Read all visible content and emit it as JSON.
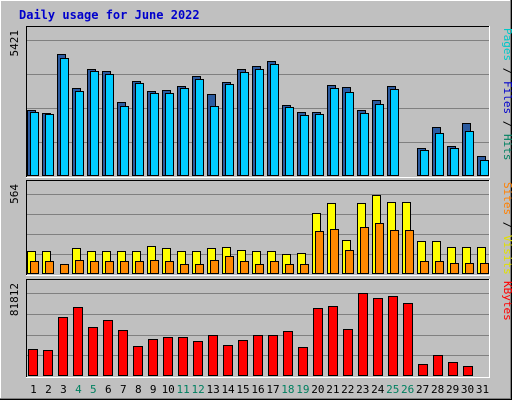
{
  "chart_data": {
    "type": "bar",
    "title": "Daily usage for June 2022",
    "x": [
      "1",
      "2",
      "3",
      "4",
      "5",
      "6",
      "7",
      "8",
      "9",
      "10",
      "11",
      "12",
      "13",
      "14",
      "15",
      "16",
      "17",
      "18",
      "19",
      "20",
      "21",
      "22",
      "23",
      "24",
      "25",
      "26",
      "27",
      "28",
      "29",
      "30",
      "31"
    ],
    "weekend_days": [
      "4",
      "5",
      "11",
      "12",
      "18",
      "19",
      "25",
      "26"
    ],
    "panels": [
      {
        "ymax_label": "5421",
        "ymax": 5421,
        "legend": [
          {
            "text": "Pages",
            "color": "#00c8c8"
          },
          {
            "text": " / ",
            "color": "#000000"
          },
          {
            "text": "Files",
            "color": "#0000cc"
          },
          {
            "text": " / ",
            "color": "#000000"
          },
          {
            "text": "Hits",
            "color": "#008060"
          }
        ],
        "series": [
          {
            "name": "Hits",
            "color": "#2b5ba0",
            "values": [
              2620,
              2510,
              4860,
              3500,
              4250,
              4180,
              2950,
              3800,
              3400,
              3420,
              3600,
              4000,
              3250,
              3760,
              4250,
              4400,
              4590,
              2850,
              2550,
              2560,
              3620,
              3560,
              2650,
              3040,
              3570,
              0,
              1110,
              1940,
              1210,
              2110,
              800
            ]
          },
          {
            "name": "Files",
            "color": "#00ccff",
            "values": [
              2540,
              2460,
              4720,
              3400,
              4180,
              4050,
              2810,
              3720,
              3320,
              3310,
              3520,
              3880,
              2800,
              3670,
              4140,
              4260,
              4450,
              2750,
              2420,
              2480,
              3500,
              3360,
              2510,
              2860,
              3460,
              0,
              1020,
              1700,
              1110,
              1810,
              620
            ]
          },
          {
            "name": "Pages",
            "color": "#00c8c8",
            "values": [
              0,
              0,
              0,
              0,
              0,
              0,
              0,
              0,
              0,
              0,
              0,
              0,
              0,
              0,
              0,
              0,
              0,
              0,
              0,
              0,
              0,
              0,
              0,
              0,
              0,
              0,
              0,
              0,
              0,
              0,
              0
            ]
          }
        ]
      },
      {
        "ymax_label": "564",
        "ymax": 564,
        "legend": [
          {
            "text": "Sites",
            "color": "#ff8000"
          },
          {
            "text": " / ",
            "color": "#000000"
          },
          {
            "text": "Visits",
            "color": "#e0e000"
          }
        ],
        "series": [
          {
            "name": "Visits",
            "color": "#ffff00",
            "values": [
              160,
              160,
              0,
              180,
              160,
              160,
              160,
              160,
              200,
              180,
              160,
              160,
              180,
              190,
              170,
              160,
              160,
              140,
              150,
              430,
              500,
              240,
              500,
              560,
              510,
              510,
              230,
              230,
              190,
              190,
              190
            ]
          },
          {
            "name": "Sites",
            "color": "#ff8800",
            "values": [
              90,
              90,
              70,
              100,
              90,
              90,
              90,
              90,
              100,
              90,
              70,
              70,
              100,
              130,
              90,
              70,
              90,
              70,
              70,
              300,
              320,
              170,
              330,
              360,
              310,
              310,
              90,
              90,
              80,
              80,
              80
            ]
          }
        ]
      },
      {
        "ymax_label": "81812",
        "ymax": 81812,
        "legend": [
          {
            "text": "KBytes",
            "color": "#ff0000"
          }
        ],
        "series": [
          {
            "name": "KBytes",
            "color": "#ff0000",
            "values": [
              26500,
              25700,
              58500,
              68200,
              48000,
              55000,
              45000,
              29500,
              36200,
              38000,
              38800,
              34700,
              40000,
              30100,
              35500,
              40000,
              40400,
              44200,
              29000,
              67500,
              68700,
              46300,
              81800,
              77300,
              78500,
              72000,
              11500,
              20500,
              13800,
              10300,
              0
            ]
          }
        ]
      }
    ]
  }
}
